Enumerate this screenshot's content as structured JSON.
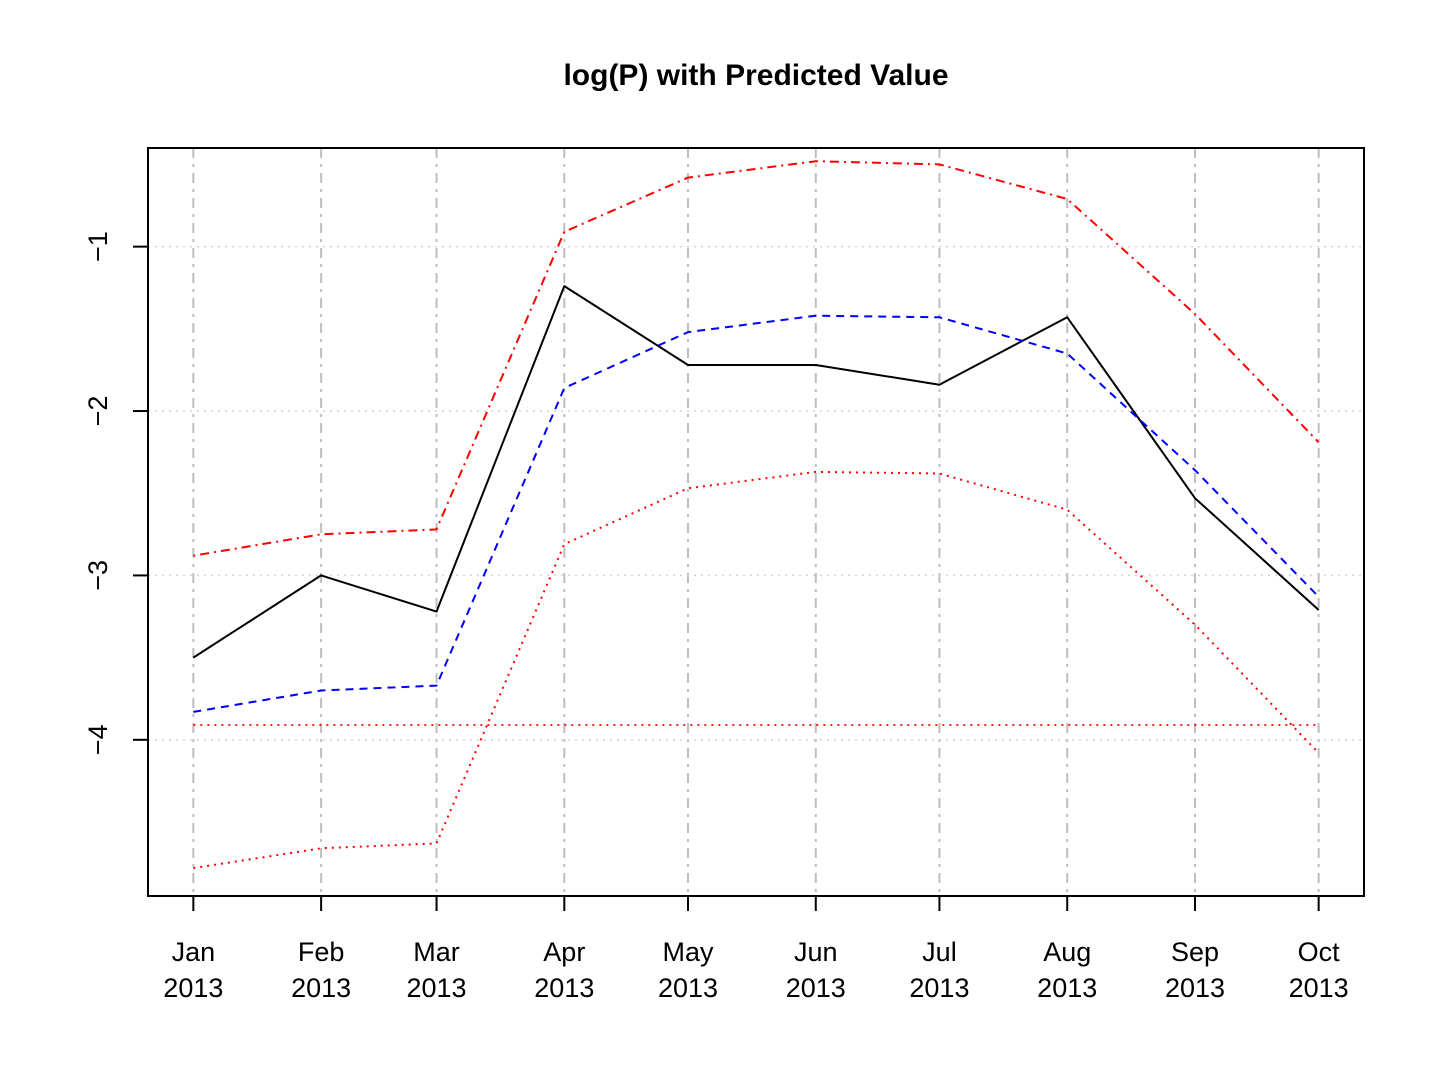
{
  "chart_data": {
    "type": "line",
    "title": "log(P) with Predicted Value",
    "xlabel": "",
    "ylabel": "",
    "categories": [
      "Jan 2013",
      "Feb 2013",
      "Mar 2013",
      "Apr 2013",
      "May 2013",
      "Jun 2013",
      "Jul 2013",
      "Aug 2013",
      "Sep 2013",
      "Oct 2013"
    ],
    "x_tick_labels": [
      [
        "Jan",
        "2013"
      ],
      [
        "Feb",
        "2013"
      ],
      [
        "Mar",
        "2013"
      ],
      [
        "Apr",
        "2013"
      ],
      [
        "May",
        "2013"
      ],
      [
        "Jun",
        "2013"
      ],
      [
        "Jul",
        "2013"
      ],
      [
        "Aug",
        "2013"
      ],
      [
        "Sep",
        "2013"
      ],
      [
        "Oct",
        "2013"
      ]
    ],
    "x_days": [
      0,
      31,
      59,
      90,
      120,
      151,
      181,
      212,
      243,
      273
    ],
    "xlim_days": [
      -11,
      284
    ],
    "y_ticks": [
      -1,
      -2,
      -3,
      -4
    ],
    "y_tick_labels": [
      "−1",
      "−2",
      "−3",
      "−4"
    ],
    "ylim": [
      -4.95,
      -0.4
    ],
    "grid": true,
    "series": [
      {
        "values": [
          -3.5,
          -3.0,
          -3.22,
          -1.24,
          -1.72,
          -1.72,
          -1.84,
          -1.43,
          -2.53,
          -3.21
        ],
        "color": "#000000",
        "dash": "solid"
      },
      {
        "values": [
          -3.83,
          -3.7,
          -3.67,
          -1.86,
          -1.52,
          -1.42,
          -1.43,
          -1.65,
          -2.36,
          -3.13
        ],
        "color": "#0000ff",
        "dash": "dashed"
      },
      {
        "values": [
          -2.88,
          -2.75,
          -2.72,
          -0.91,
          -0.58,
          -0.48,
          -0.5,
          -0.71,
          -1.41,
          -2.19
        ],
        "color": "#ff0000",
        "dash": "dotdash"
      },
      {
        "values": [
          -4.78,
          -4.66,
          -4.63,
          -2.81,
          -2.47,
          -2.37,
          -2.38,
          -2.6,
          -3.3,
          -4.08
        ],
        "color": "#ff0000",
        "dash": "dotted"
      }
    ],
    "hline": {
      "y": -3.91,
      "color": "#ff0000",
      "dash": "dotted"
    }
  }
}
